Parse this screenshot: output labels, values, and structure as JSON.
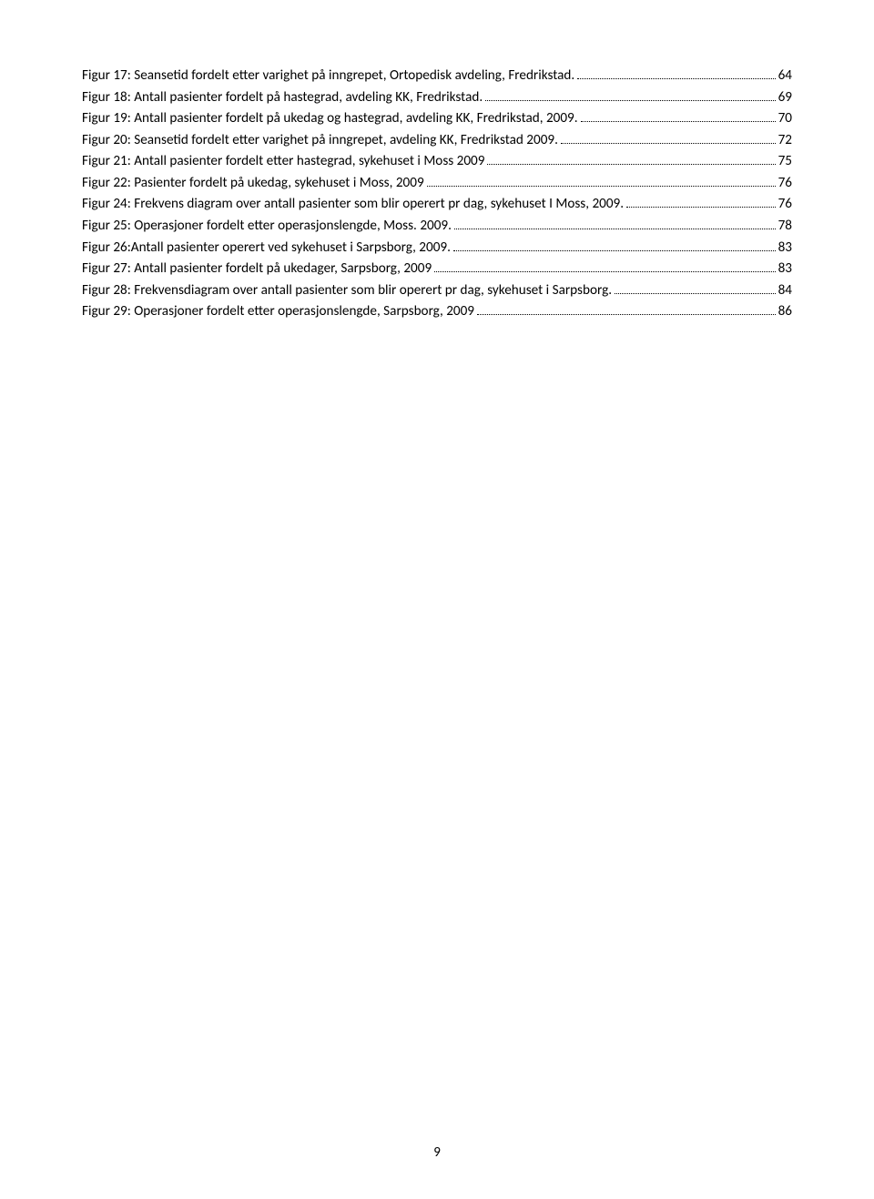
{
  "toc": {
    "entries": [
      {
        "label": "Figur 17: Seansetid fordelt etter varighet på inngrepet, Ortopedisk avdeling, Fredrikstad.",
        "page": "64"
      },
      {
        "label": "Figur 18: Antall pasienter fordelt på hastegrad, avdeling KK, Fredrikstad.",
        "page": "69"
      },
      {
        "label": "Figur 19: Antall pasienter fordelt på ukedag og hastegrad, avdeling KK, Fredrikstad, 2009.",
        "page": "70"
      },
      {
        "label": "Figur 20: Seansetid fordelt etter varighet på inngrepet, avdeling KK, Fredrikstad 2009.",
        "page": "72"
      },
      {
        "label": "Figur 21: Antall pasienter fordelt etter hastegrad, sykehuset i Moss 2009",
        "page": "75"
      },
      {
        "label": "Figur 22: Pasienter fordelt på ukedag, sykehuset i Moss, 2009",
        "page": "76"
      },
      {
        "label": "Figur 24: Frekvens diagram over antall pasienter som blir operert pr dag, sykehuset I Moss, 2009.",
        "page": "76"
      },
      {
        "label": "Figur 25: Operasjoner fordelt etter operasjonslengde, Moss. 2009.",
        "page": "78"
      },
      {
        "label": "Figur 26:Antall pasienter operert ved sykehuset i Sarpsborg, 2009.",
        "page": "83"
      },
      {
        "label": "Figur 27: Antall pasienter fordelt på ukedager, Sarpsborg, 2009",
        "page": "83"
      },
      {
        "label": "Figur 28: Frekvensdiagram over antall pasienter som blir operert pr dag, sykehuset i Sarpsborg.",
        "page": "84"
      },
      {
        "label": "Figur 29: Operasjoner fordelt etter operasjonslengde, Sarpsborg, 2009",
        "page": "86"
      }
    ]
  },
  "pageNumber": "9"
}
